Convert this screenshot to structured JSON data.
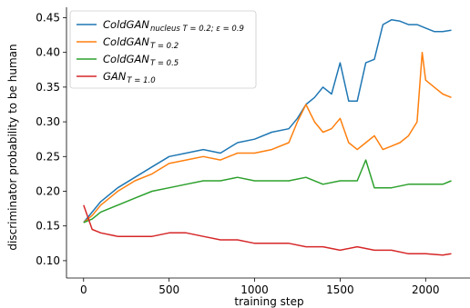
{
  "chart_data": {
    "type": "line",
    "xlabel": "training step",
    "ylabel": "discriminator probability to be human",
    "xlim": [
      -100,
      2270
    ],
    "ylim": [
      0.075,
      0.465
    ],
    "xticks": [
      0,
      500,
      1000,
      1500,
      2000
    ],
    "yticks": [
      0.1,
      0.15,
      0.2,
      0.25,
      0.3,
      0.35,
      0.4,
      0.45
    ],
    "xtick_labels": [
      "0",
      "500",
      "1000",
      "1500",
      "2000"
    ],
    "ytick_labels": [
      "0.10",
      "0.15",
      "0.20",
      "0.25",
      "0.30",
      "0.35",
      "0.40",
      "0.45"
    ],
    "grid": false,
    "legend_position": "top-left",
    "series": [
      {
        "legend_main": "ColdGAN",
        "legend_sub": "nucleus T = 0.2; ε = 0.9",
        "color": "#1f77b4",
        "x": [
          0,
          50,
          100,
          200,
          300,
          400,
          500,
          600,
          700,
          800,
          900,
          1000,
          1100,
          1200,
          1250,
          1300,
          1350,
          1400,
          1450,
          1500,
          1550,
          1600,
          1650,
          1700,
          1750,
          1800,
          1850,
          1900,
          1950,
          2000,
          2050,
          2100,
          2150
        ],
        "values": [
          0.155,
          0.17,
          0.185,
          0.205,
          0.22,
          0.235,
          0.25,
          0.255,
          0.26,
          0.255,
          0.27,
          0.275,
          0.285,
          0.29,
          0.305,
          0.325,
          0.335,
          0.35,
          0.34,
          0.385,
          0.33,
          0.33,
          0.385,
          0.39,
          0.44,
          0.447,
          0.445,
          0.44,
          0.44,
          0.435,
          0.43,
          0.43,
          0.432
        ]
      },
      {
        "legend_main": "ColdGAN",
        "legend_sub": "T = 0.2",
        "color": "#ff7f0e",
        "x": [
          0,
          50,
          100,
          200,
          300,
          400,
          500,
          600,
          700,
          800,
          900,
          1000,
          1100,
          1200,
          1250,
          1300,
          1350,
          1400,
          1450,
          1500,
          1550,
          1600,
          1650,
          1700,
          1750,
          1800,
          1850,
          1900,
          1950,
          1980,
          2000,
          2050,
          2100,
          2150
        ],
        "values": [
          0.155,
          0.165,
          0.18,
          0.2,
          0.215,
          0.225,
          0.24,
          0.245,
          0.25,
          0.245,
          0.255,
          0.255,
          0.26,
          0.27,
          0.3,
          0.325,
          0.3,
          0.285,
          0.29,
          0.305,
          0.27,
          0.26,
          0.27,
          0.28,
          0.26,
          0.265,
          0.27,
          0.28,
          0.3,
          0.4,
          0.36,
          0.35,
          0.34,
          0.335
        ]
      },
      {
        "legend_main": "ColdGAN",
        "legend_sub": "T = 0.5",
        "color": "#2ca02c",
        "x": [
          0,
          50,
          100,
          200,
          300,
          400,
          500,
          600,
          700,
          800,
          900,
          1000,
          1100,
          1200,
          1300,
          1400,
          1500,
          1600,
          1650,
          1700,
          1800,
          1900,
          2000,
          2100,
          2150
        ],
        "values": [
          0.155,
          0.16,
          0.17,
          0.18,
          0.19,
          0.2,
          0.205,
          0.21,
          0.215,
          0.215,
          0.22,
          0.215,
          0.215,
          0.215,
          0.22,
          0.21,
          0.215,
          0.215,
          0.245,
          0.205,
          0.205,
          0.21,
          0.21,
          0.21,
          0.215
        ]
      },
      {
        "legend_main": "GAN",
        "legend_sub": "T = 1.0",
        "color": "#d62728",
        "x": [
          0,
          50,
          100,
          200,
          300,
          400,
          500,
          600,
          700,
          800,
          900,
          1000,
          1100,
          1200,
          1300,
          1400,
          1500,
          1600,
          1700,
          1800,
          1900,
          2000,
          2100,
          2150
        ],
        "values": [
          0.18,
          0.145,
          0.14,
          0.135,
          0.135,
          0.135,
          0.14,
          0.14,
          0.135,
          0.13,
          0.13,
          0.125,
          0.125,
          0.125,
          0.12,
          0.12,
          0.115,
          0.12,
          0.115,
          0.115,
          0.11,
          0.11,
          0.108,
          0.11
        ]
      }
    ]
  }
}
